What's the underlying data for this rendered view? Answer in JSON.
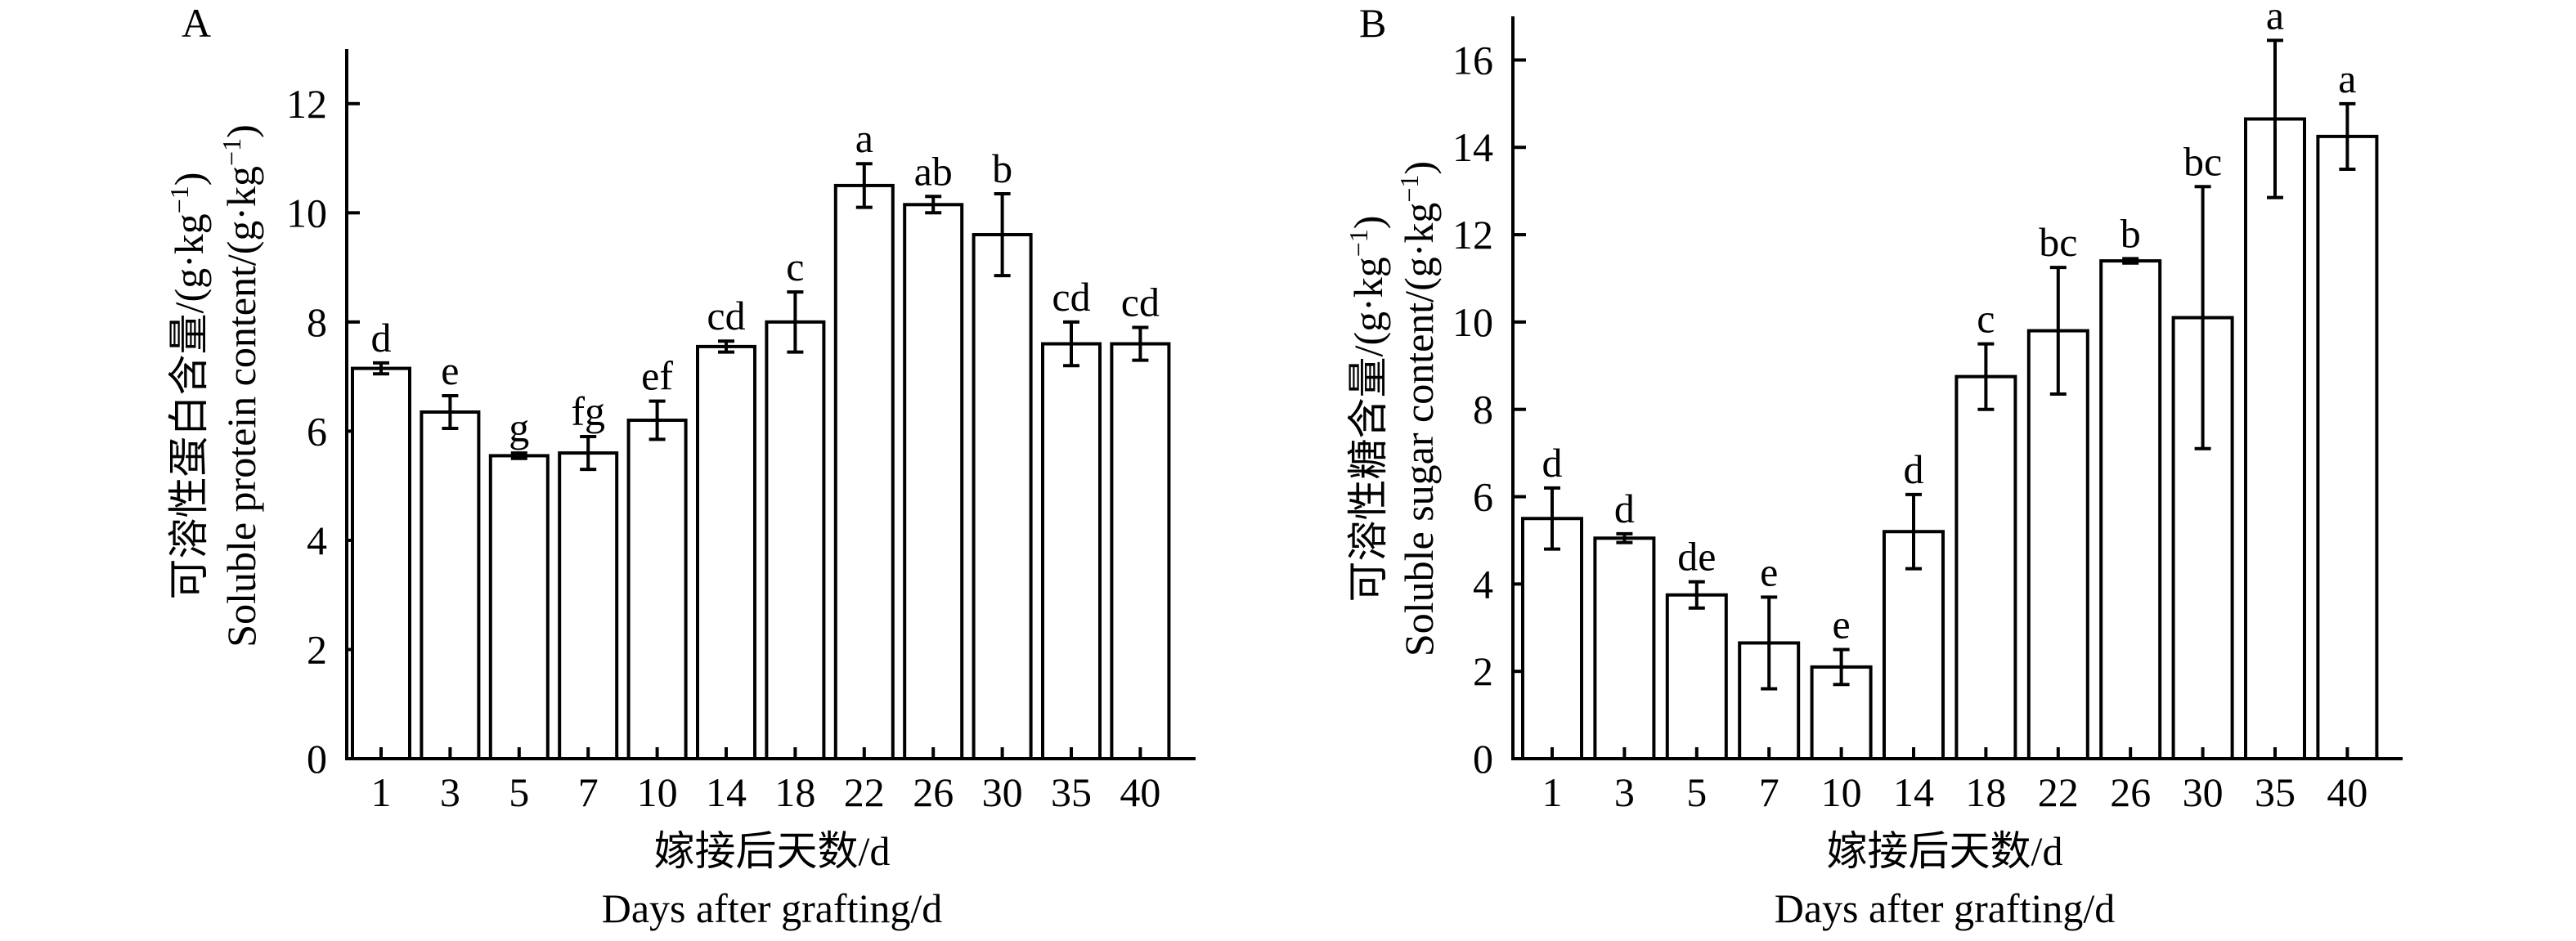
{
  "chart_data": [
    {
      "type": "bar",
      "panel_label": "A",
      "xlabel_cn": "嫁接后天数/d",
      "xlabel_en": "Days after grafting/d",
      "ylabel_cn": "可溶性蛋白含量/(g·kg",
      "ylabel_en": "Soluble protein content/(g·kg",
      "ylabel_sup": "−1",
      "ylabel_close": ")",
      "categories": [
        "1",
        "3",
        "5",
        "7",
        "10",
        "14",
        "18",
        "22",
        "26",
        "30",
        "35",
        "40"
      ],
      "values": [
        7.15,
        6.35,
        5.55,
        5.6,
        6.2,
        7.55,
        8.0,
        10.5,
        10.15,
        9.6,
        7.6,
        7.6
      ],
      "errors": [
        0.1,
        0.3,
        0.05,
        0.3,
        0.35,
        0.1,
        0.55,
        0.4,
        0.15,
        0.75,
        0.4,
        0.3
      ],
      "significance": [
        "d",
        "e",
        "g",
        "fg",
        "ef",
        "cd",
        "c",
        "a",
        "ab",
        "b",
        "cd",
        "cd"
      ],
      "ylim": [
        0,
        13
      ],
      "yticks": [
        "0",
        "2",
        "4",
        "6",
        "8",
        "10",
        "12"
      ],
      "grid": false,
      "bar_fill": "#ffffff",
      "bar_stroke": "#000000"
    },
    {
      "type": "bar",
      "panel_label": "B",
      "xlabel_cn": "嫁接后天数/d",
      "xlabel_en": "Days after grafting/d",
      "ylabel_cn": "可溶性糖含量/(g·kg",
      "ylabel_en": "Soluble sugar content/(g·kg",
      "ylabel_sup": "−1",
      "ylabel_close": ")",
      "categories": [
        "1",
        "3",
        "5",
        "7",
        "10",
        "14",
        "18",
        "22",
        "26",
        "30",
        "35",
        "40"
      ],
      "values": [
        5.5,
        5.05,
        3.75,
        2.65,
        2.1,
        5.2,
        8.75,
        9.8,
        11.4,
        10.1,
        14.65,
        14.25
      ],
      "errors": [
        0.7,
        0.1,
        0.3,
        1.05,
        0.4,
        0.85,
        0.75,
        1.45,
        0.05,
        3.0,
        1.8,
        0.75
      ],
      "significance": [
        "d",
        "d",
        "de",
        "e",
        "e",
        "d",
        "c",
        "bc",
        "b",
        "bc",
        "a",
        "a"
      ],
      "ylim": [
        0,
        17
      ],
      "yticks": [
        "0",
        "2",
        "4",
        "6",
        "8",
        "10",
        "12",
        "14",
        "16"
      ],
      "grid": false,
      "bar_fill": "#ffffff",
      "bar_stroke": "#000000"
    }
  ]
}
